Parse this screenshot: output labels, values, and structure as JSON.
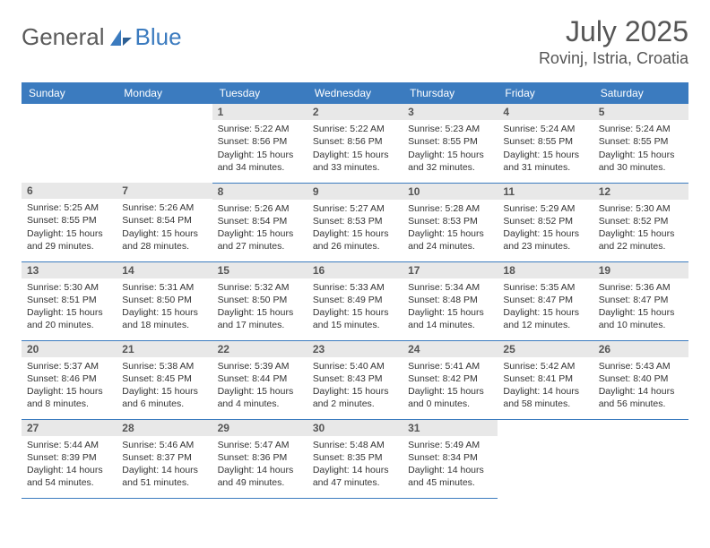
{
  "brand": {
    "part1": "General",
    "part2": "Blue"
  },
  "title": "July 2025",
  "location": "Rovinj, Istria, Croatia",
  "colors": {
    "header_bg": "#3b7bbf",
    "daynum_bg": "#e8e8e8",
    "text": "#333333"
  },
  "weekdays": [
    "Sunday",
    "Monday",
    "Tuesday",
    "Wednesday",
    "Thursday",
    "Friday",
    "Saturday"
  ],
  "weeks": [
    [
      null,
      null,
      {
        "n": "1",
        "rise": "5:22 AM",
        "set": "8:56 PM",
        "day": "15 hours and 34 minutes."
      },
      {
        "n": "2",
        "rise": "5:22 AM",
        "set": "8:56 PM",
        "day": "15 hours and 33 minutes."
      },
      {
        "n": "3",
        "rise": "5:23 AM",
        "set": "8:55 PM",
        "day": "15 hours and 32 minutes."
      },
      {
        "n": "4",
        "rise": "5:24 AM",
        "set": "8:55 PM",
        "day": "15 hours and 31 minutes."
      },
      {
        "n": "5",
        "rise": "5:24 AM",
        "set": "8:55 PM",
        "day": "15 hours and 30 minutes."
      }
    ],
    [
      {
        "n": "6",
        "rise": "5:25 AM",
        "set": "8:55 PM",
        "day": "15 hours and 29 minutes."
      },
      {
        "n": "7",
        "rise": "5:26 AM",
        "set": "8:54 PM",
        "day": "15 hours and 28 minutes."
      },
      {
        "n": "8",
        "rise": "5:26 AM",
        "set": "8:54 PM",
        "day": "15 hours and 27 minutes."
      },
      {
        "n": "9",
        "rise": "5:27 AM",
        "set": "8:53 PM",
        "day": "15 hours and 26 minutes."
      },
      {
        "n": "10",
        "rise": "5:28 AM",
        "set": "8:53 PM",
        "day": "15 hours and 24 minutes."
      },
      {
        "n": "11",
        "rise": "5:29 AM",
        "set": "8:52 PM",
        "day": "15 hours and 23 minutes."
      },
      {
        "n": "12",
        "rise": "5:30 AM",
        "set": "8:52 PM",
        "day": "15 hours and 22 minutes."
      }
    ],
    [
      {
        "n": "13",
        "rise": "5:30 AM",
        "set": "8:51 PM",
        "day": "15 hours and 20 minutes."
      },
      {
        "n": "14",
        "rise": "5:31 AM",
        "set": "8:50 PM",
        "day": "15 hours and 18 minutes."
      },
      {
        "n": "15",
        "rise": "5:32 AM",
        "set": "8:50 PM",
        "day": "15 hours and 17 minutes."
      },
      {
        "n": "16",
        "rise": "5:33 AM",
        "set": "8:49 PM",
        "day": "15 hours and 15 minutes."
      },
      {
        "n": "17",
        "rise": "5:34 AM",
        "set": "8:48 PM",
        "day": "15 hours and 14 minutes."
      },
      {
        "n": "18",
        "rise": "5:35 AM",
        "set": "8:47 PM",
        "day": "15 hours and 12 minutes."
      },
      {
        "n": "19",
        "rise": "5:36 AM",
        "set": "8:47 PM",
        "day": "15 hours and 10 minutes."
      }
    ],
    [
      {
        "n": "20",
        "rise": "5:37 AM",
        "set": "8:46 PM",
        "day": "15 hours and 8 minutes."
      },
      {
        "n": "21",
        "rise": "5:38 AM",
        "set": "8:45 PM",
        "day": "15 hours and 6 minutes."
      },
      {
        "n": "22",
        "rise": "5:39 AM",
        "set": "8:44 PM",
        "day": "15 hours and 4 minutes."
      },
      {
        "n": "23",
        "rise": "5:40 AM",
        "set": "8:43 PM",
        "day": "15 hours and 2 minutes."
      },
      {
        "n": "24",
        "rise": "5:41 AM",
        "set": "8:42 PM",
        "day": "15 hours and 0 minutes."
      },
      {
        "n": "25",
        "rise": "5:42 AM",
        "set": "8:41 PM",
        "day": "14 hours and 58 minutes."
      },
      {
        "n": "26",
        "rise": "5:43 AM",
        "set": "8:40 PM",
        "day": "14 hours and 56 minutes."
      }
    ],
    [
      {
        "n": "27",
        "rise": "5:44 AM",
        "set": "8:39 PM",
        "day": "14 hours and 54 minutes."
      },
      {
        "n": "28",
        "rise": "5:46 AM",
        "set": "8:37 PM",
        "day": "14 hours and 51 minutes."
      },
      {
        "n": "29",
        "rise": "5:47 AM",
        "set": "8:36 PM",
        "day": "14 hours and 49 minutes."
      },
      {
        "n": "30",
        "rise": "5:48 AM",
        "set": "8:35 PM",
        "day": "14 hours and 47 minutes."
      },
      {
        "n": "31",
        "rise": "5:49 AM",
        "set": "8:34 PM",
        "day": "14 hours and 45 minutes."
      },
      null,
      null
    ]
  ],
  "labels": {
    "sunrise": "Sunrise:",
    "sunset": "Sunset:",
    "daylight": "Daylight:"
  }
}
